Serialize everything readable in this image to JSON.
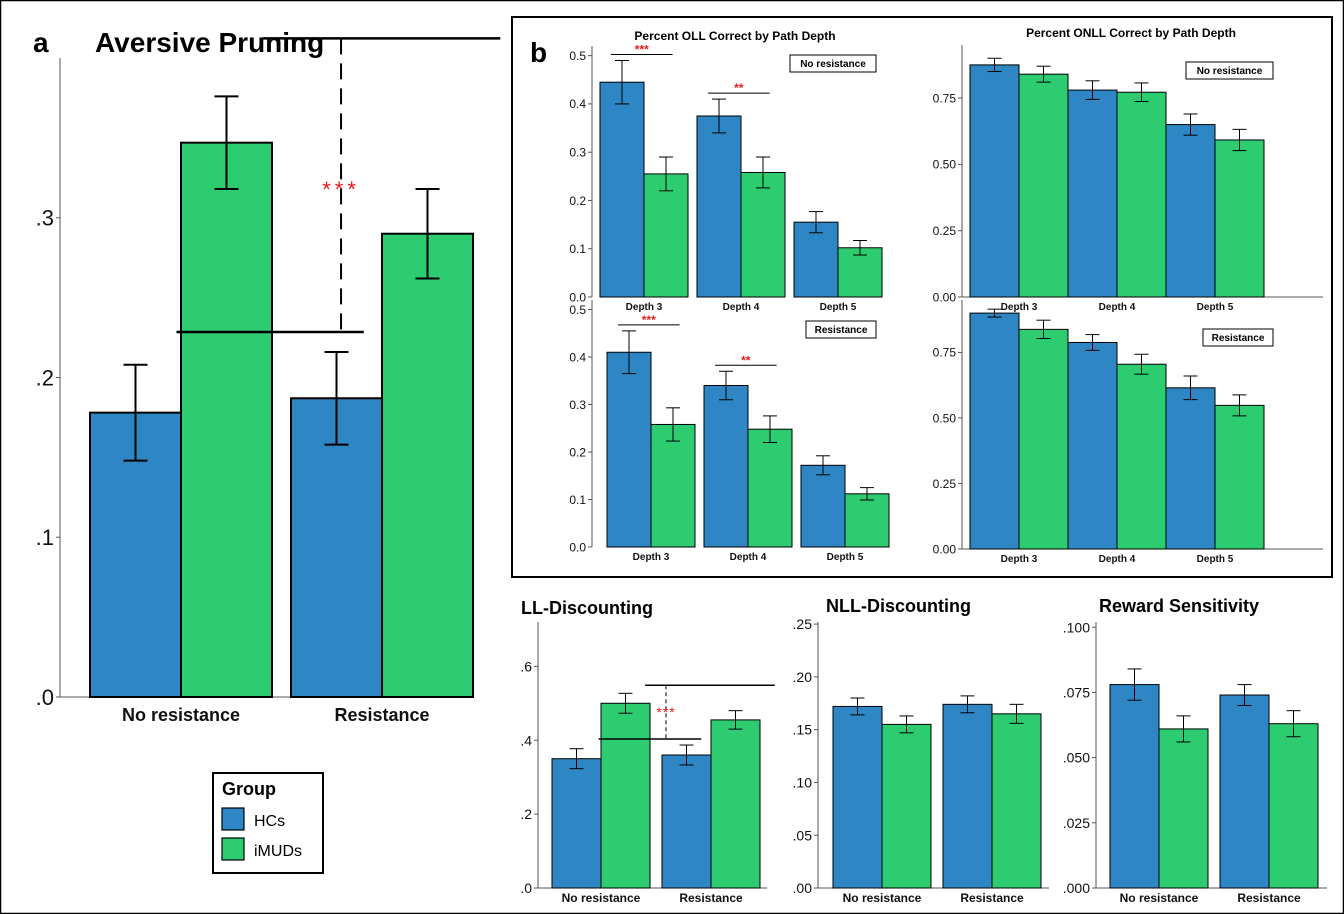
{
  "colors": {
    "hc": "#2f86c4",
    "imud": "#2ecc71",
    "sig": "#e8191a"
  },
  "legend": {
    "title": "Group",
    "items": [
      {
        "label": "HCs",
        "color": "#2f86c4"
      },
      {
        "label": "iMUDs",
        "color": "#2ecc71"
      }
    ]
  },
  "chart_data": [
    {
      "id": "pruning",
      "panel_letter": "a",
      "type": "bar",
      "title": "Aversive Pruning",
      "categories": [
        "No resistance",
        "Resistance"
      ],
      "ylim": [
        0,
        0.4
      ],
      "tick_values": [
        0,
        0.1,
        0.2,
        0.3
      ],
      "tick_labels": [
        ".0",
        ".1",
        ".2",
        ".3"
      ],
      "series": [
        {
          "name": "HCs",
          "values": [
            0.178,
            0.187
          ],
          "errors": [
            0.03,
            0.029
          ]
        },
        {
          "name": "iMUDs",
          "values": [
            0.347,
            0.29
          ],
          "errors": [
            0.029,
            0.028
          ]
        }
      ],
      "significance": "***",
      "legend": "left-bottom"
    },
    {
      "id": "oll_nr",
      "panel_letter": "b",
      "type": "bar",
      "title": "Percent OLL Correct by Path Depth",
      "condition_label": "No resistance",
      "categories": [
        "Depth 3",
        "Depth 4",
        "Depth 5"
      ],
      "ylim": [
        0,
        0.52
      ],
      "tick_values": [
        0,
        0.1,
        0.2,
        0.3,
        0.4,
        0.5
      ],
      "tick_labels": [
        "0.0",
        "0.1",
        "0.2",
        "0.3",
        "0.4",
        "0.5"
      ],
      "series": [
        {
          "name": "HCs",
          "values": [
            0.445,
            0.375,
            0.155
          ],
          "errors": [
            0.045,
            0.035,
            0.022
          ]
        },
        {
          "name": "iMUDs",
          "values": [
            0.255,
            0.258,
            0.102
          ],
          "errors": [
            0.035,
            0.032,
            0.015
          ]
        }
      ],
      "significance": [
        "***",
        "**"
      ]
    },
    {
      "id": "onll_nr",
      "type": "bar",
      "title": "Percent ONLL Correct by Path Depth",
      "condition_label": "No resistance",
      "categories": [
        "Depth 3",
        "Depth 4",
        "Depth 5"
      ],
      "ylim": [
        0,
        0.95
      ],
      "tick_values": [
        0,
        0.25,
        0.5,
        0.75
      ],
      "tick_labels": [
        "0.00",
        "0.25",
        "0.50",
        "0.75"
      ],
      "series": [
        {
          "name": "HCs",
          "values": [
            0.875,
            0.78,
            0.65
          ],
          "errors": [
            0.025,
            0.035,
            0.04
          ]
        },
        {
          "name": "iMUDs",
          "values": [
            0.84,
            0.772,
            0.592
          ],
          "errors": [
            0.03,
            0.035,
            0.04
          ]
        }
      ]
    },
    {
      "id": "oll_r",
      "type": "bar",
      "condition_label": "Resistance",
      "categories": [
        "Depth 3",
        "Depth 4",
        "Depth 5"
      ],
      "ylim": [
        0,
        0.52
      ],
      "tick_values": [
        0,
        0.1,
        0.2,
        0.3,
        0.4,
        0.5
      ],
      "tick_labels": [
        "0.0",
        "0.1",
        "0.2",
        "0.3",
        "0.4",
        "0.5"
      ],
      "series": [
        {
          "name": "HCs",
          "values": [
            0.41,
            0.34,
            0.172
          ],
          "errors": [
            0.045,
            0.03,
            0.02
          ]
        },
        {
          "name": "iMUDs",
          "values": [
            0.258,
            0.248,
            0.112
          ],
          "errors": [
            0.035,
            0.028,
            0.013
          ]
        }
      ],
      "significance": [
        "***",
        "**"
      ]
    },
    {
      "id": "onll_r",
      "type": "bar",
      "condition_label": "Resistance",
      "categories": [
        "Depth 3",
        "Depth 4",
        "Depth 5"
      ],
      "ylim": [
        0,
        0.95
      ],
      "tick_values": [
        0,
        0.25,
        0.5,
        0.75
      ],
      "tick_labels": [
        "0.00",
        "0.25",
        "0.50",
        "0.75"
      ],
      "series": [
        {
          "name": "HCs",
          "values": [
            0.9,
            0.788,
            0.615
          ],
          "errors": [
            0.015,
            0.03,
            0.045
          ]
        },
        {
          "name": "iMUDs",
          "values": [
            0.838,
            0.705,
            0.548
          ],
          "errors": [
            0.035,
            0.038,
            0.04
          ]
        }
      ]
    },
    {
      "id": "ll",
      "type": "bar",
      "title": "LL-Discounting",
      "categories": [
        "No resistance",
        "Resistance"
      ],
      "ylim": [
        0,
        0.72
      ],
      "tick_values": [
        0,
        0.2,
        0.4,
        0.6
      ],
      "tick_labels": [
        ".0",
        ".2",
        ".4",
        ".6"
      ],
      "series": [
        {
          "name": "HCs",
          "values": [
            0.35,
            0.36
          ],
          "errors": [
            0.027,
            0.027
          ]
        },
        {
          "name": "iMUDs",
          "values": [
            0.5,
            0.455
          ],
          "errors": [
            0.027,
            0.025
          ]
        }
      ],
      "significance": "***"
    },
    {
      "id": "nll",
      "type": "bar",
      "title": "NLL-Discounting",
      "categories": [
        "No resistance",
        "Resistance"
      ],
      "ylim": [
        0,
        0.252
      ],
      "tick_values": [
        0,
        0.05,
        0.1,
        0.15,
        0.2,
        0.25
      ],
      "tick_labels": [
        ".00",
        ".05",
        ".10",
        ".15",
        ".20",
        ".25"
      ],
      "series": [
        {
          "name": "HCs",
          "values": [
            0.172,
            0.174
          ],
          "errors": [
            0.008,
            0.008
          ]
        },
        {
          "name": "iMUDs",
          "values": [
            0.155,
            0.165
          ],
          "errors": [
            0.008,
            0.009
          ]
        }
      ]
    },
    {
      "id": "reward",
      "type": "bar",
      "title": "Reward Sensitivity",
      "categories": [
        "No resistance",
        "Resistance"
      ],
      "ylim": [
        0,
        0.102
      ],
      "tick_values": [
        0,
        0.025,
        0.05,
        0.075,
        0.1
      ],
      "tick_labels": [
        ".000",
        ".025",
        ".050",
        ".075",
        ".100"
      ],
      "series": [
        {
          "name": "HCs",
          "values": [
            0.078,
            0.074
          ],
          "errors": [
            0.006,
            0.004
          ]
        },
        {
          "name": "iMUDs",
          "values": [
            0.061,
            0.063
          ],
          "errors": [
            0.005,
            0.005
          ]
        }
      ]
    }
  ]
}
